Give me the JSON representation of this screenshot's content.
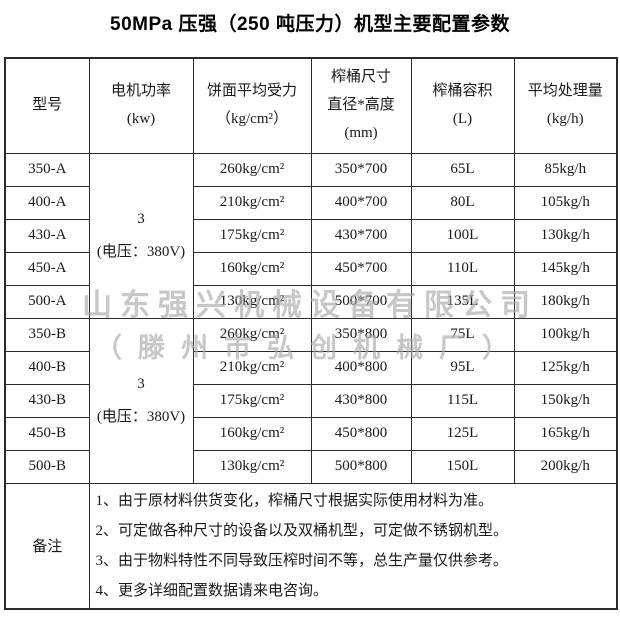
{
  "page_title": "50MPa 压强（250 吨压力）机型主要配置参数",
  "watermark": {
    "line1": "山东强兴机械设备有限公司",
    "line2": "（滕州市弘创机械厂）"
  },
  "colors": {
    "border": "#2b2b2b",
    "text": "#1a1a1a",
    "watermark_gray": "#a5a5a5",
    "background": "#ffffff"
  },
  "table": {
    "headers": [
      {
        "lines": [
          "型号"
        ]
      },
      {
        "lines": [
          "电机功率",
          "(kw)"
        ]
      },
      {
        "lines": [
          "饼面平均受力",
          "（kg/cm²）"
        ]
      },
      {
        "lines": [
          "榨桶尺寸",
          "直径*高度",
          "(mm)"
        ]
      },
      {
        "lines": [
          "榨桶容积",
          "(L)"
        ]
      },
      {
        "lines": [
          "平均处理量",
          "(kg/h)"
        ]
      }
    ],
    "groups": [
      {
        "power": "3",
        "power_note": "(电压：380V)",
        "rows": [
          {
            "model": "350-A",
            "pressure": "260kg/cm²",
            "size": "350*700",
            "volume": "65L",
            "output": "85kg/h"
          },
          {
            "model": "400-A",
            "pressure": "210kg/cm²",
            "size": "400*700",
            "volume": "80L",
            "output": "105kg/h"
          },
          {
            "model": "430-A",
            "pressure": "175kg/cm²",
            "size": "430*700",
            "volume": "100L",
            "output": "130kg/h"
          },
          {
            "model": "450-A",
            "pressure": "160kg/cm²",
            "size": "450*700",
            "volume": "110L",
            "output": "145kg/h"
          },
          {
            "model": "500-A",
            "pressure": "130kg/cm²",
            "size": "500*700",
            "volume": "135L",
            "output": "180kg/h"
          }
        ]
      },
      {
        "power": "3",
        "power_note": "(电压：380V)",
        "rows": [
          {
            "model": "350-B",
            "pressure": "260kg/cm²",
            "size": "350*800",
            "volume": "75L",
            "output": "100kg/h"
          },
          {
            "model": "400-B",
            "pressure": "210kg/cm²",
            "size": "400*800",
            "volume": "95L",
            "output": "125kg/h"
          },
          {
            "model": "430-B",
            "pressure": "175kg/cm²",
            "size": "430*800",
            "volume": "115L",
            "output": "150kg/h"
          },
          {
            "model": "450-B",
            "pressure": "160kg/cm²",
            "size": "450*800",
            "volume": "125L",
            "output": "165kg/h"
          },
          {
            "model": "500-B",
            "pressure": "130kg/cm²",
            "size": "500*800",
            "volume": "150L",
            "output": "200kg/h"
          }
        ]
      }
    ],
    "remarks": {
      "label": "备注",
      "items": [
        "1、由于原材料供货变化，榨桶尺寸根据实际使用材料为准。",
        "2、可定做各种尺寸的设备以及双桶机型，可定做不锈钢机型。",
        "3、由于物料特性不同导致压榨时间不等，总生产量仅供参考。",
        "4、更多详细配置数据请来电咨询。"
      ]
    }
  }
}
